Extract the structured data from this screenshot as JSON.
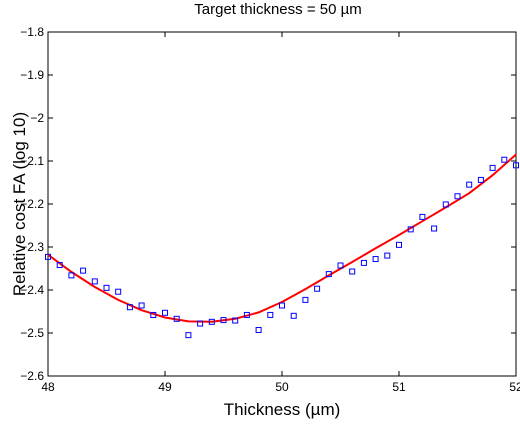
{
  "chart_data": {
    "type": "scatter",
    "title": "Target thickness = 50 µm",
    "xlabel": "Thickness (µm)",
    "ylabel": "Relative cost FA (log 10)",
    "xlim": [
      48,
      52
    ],
    "ylim": [
      -2.6,
      -1.8
    ],
    "xticks": [
      48,
      49,
      50,
      51,
      52
    ],
    "yticks": [
      -2.6,
      -2.5,
      -2.4,
      -2.3,
      -2.2,
      -2.1,
      -2.0,
      -1.9,
      -1.8
    ],
    "xtick_labels": [
      "48",
      "49",
      "50",
      "51",
      "52"
    ],
    "ytick_labels": [
      "−2.6",
      "−2.5",
      "−2.4",
      "−2.3",
      "−2.2",
      "−2.1",
      "−2",
      "−1.9",
      "−1.8"
    ],
    "grid": false,
    "series": [
      {
        "marker": "square",
        "color": "#0000ff",
        "x": [
          48.0,
          48.1,
          48.2,
          48.3,
          48.4,
          48.5,
          48.6,
          48.7,
          48.8,
          48.9,
          49.0,
          49.1,
          49.2,
          49.3,
          49.4,
          49.5,
          49.6,
          49.7,
          49.8,
          49.9,
          50.0,
          50.1,
          50.2,
          50.3,
          50.4,
          50.5,
          50.6,
          50.7,
          50.8,
          50.9,
          51.0,
          51.1,
          51.2,
          51.3,
          51.4,
          51.5,
          51.6,
          51.7,
          51.8,
          51.9,
          52.0
        ],
        "y": [
          -2.323,
          -2.342,
          -2.366,
          -2.355,
          -2.38,
          -2.395,
          -2.404,
          -2.44,
          -2.436,
          -2.458,
          -2.453,
          -2.467,
          -2.505,
          -2.478,
          -2.474,
          -2.47,
          -2.471,
          -2.458,
          -2.493,
          -2.458,
          -2.436,
          -2.46,
          -2.423,
          -2.397,
          -2.363,
          -2.343,
          -2.357,
          -2.337,
          -2.328,
          -2.32,
          -2.295,
          -2.259,
          -2.23,
          -2.257,
          -2.201,
          -2.182,
          -2.155,
          -2.144,
          -2.116,
          -2.097,
          -2.11
        ]
      },
      {
        "type": "line",
        "color": "#ff0000",
        "x": [
          48.0,
          48.2,
          48.4,
          48.6,
          48.8,
          49.0,
          49.2,
          49.4,
          49.6,
          49.8,
          50.0,
          50.2,
          50.4,
          50.6,
          50.8,
          51.0,
          51.2,
          51.4,
          51.6,
          51.8,
          52.0
        ],
        "y": [
          -2.318,
          -2.358,
          -2.393,
          -2.423,
          -2.447,
          -2.464,
          -2.473,
          -2.474,
          -2.467,
          -2.452,
          -2.428,
          -2.398,
          -2.366,
          -2.335,
          -2.303,
          -2.272,
          -2.24,
          -2.208,
          -2.175,
          -2.133,
          -2.085
        ]
      }
    ]
  }
}
